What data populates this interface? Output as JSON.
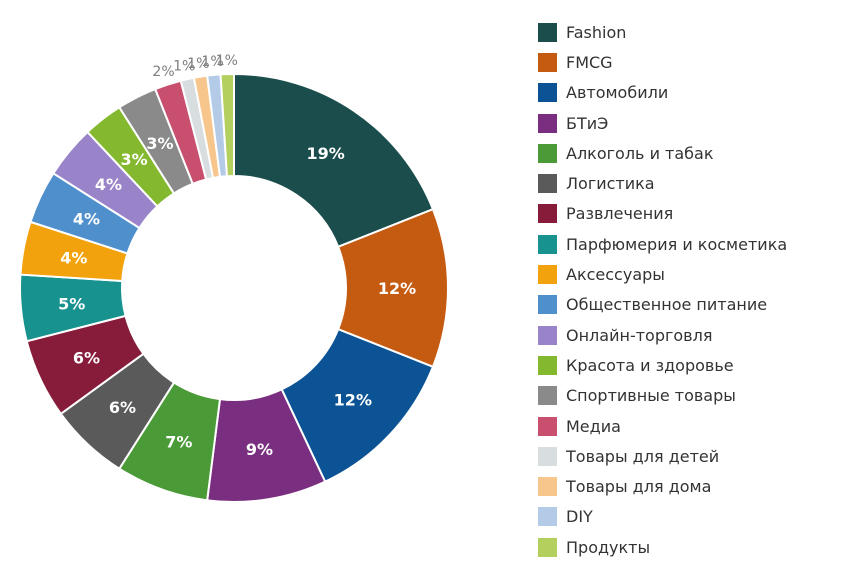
{
  "chart_data": {
    "type": "pie",
    "title": "",
    "legend_position": "right",
    "categories": [
      "Fashion",
      "FMCG",
      "Автомобили",
      "БТиЭ",
      "Алкоголь и табак",
      "Логистика",
      "Развлечения",
      "Парфюмерия и косметика",
      "Аксессуары",
      "Общественное питание",
      "Онлайн-торговля",
      "Красота и здоровье",
      "Спортивные товары",
      "Медиа",
      "Товары для детей",
      "Товары для дома",
      "DIY",
      "Продукты"
    ],
    "values": [
      19,
      12,
      12,
      9,
      7,
      6,
      6,
      5,
      4,
      4,
      4,
      3,
      3,
      2,
      1,
      1,
      1,
      1
    ],
    "labels": [
      "19%",
      "12%",
      "12%",
      "9%",
      "7%",
      "6%",
      "6%",
      "5%",
      "4%",
      "4%",
      "4%",
      "3%",
      "3%",
      "2%",
      "1%",
      "1%",
      "1%",
      "1%"
    ],
    "colors": [
      "#1b4d4d",
      "#c55a11",
      "#0b5394",
      "#7a2e80",
      "#4a9a37",
      "#5a5a5a",
      "#861c3a",
      "#17928f",
      "#f2a20d",
      "#4f8fcc",
      "#9a84c9",
      "#84b92f",
      "#8a8a8a",
      "#c84f6e",
      "#d8dde0",
      "#f7c68c",
      "#b4cbe8",
      "#b3cf5e"
    ]
  }
}
